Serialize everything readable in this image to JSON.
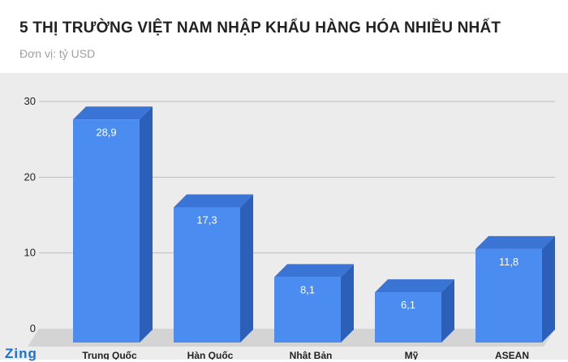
{
  "chart_data": {
    "type": "bar",
    "title": "5 THỊ TRƯỜNG VIỆT NAM NHẬP KHẨU HÀNG HÓA NHIỀU NHẤT",
    "subtitle": "Đơn vị: tỷ USD",
    "categories": [
      "Trung Quốc",
      "Hàn Quốc",
      "Nhật Bản",
      "Mỹ",
      "ASEAN"
    ],
    "values": [
      28.9,
      17.3,
      8.1,
      6.1,
      11.8
    ],
    "value_labels": [
      "28,9",
      "17,3",
      "8,1",
      "6,1",
      "11,8"
    ],
    "ylim": [
      0,
      30
    ],
    "yticks": [
      "0",
      "10",
      "20",
      "30"
    ],
    "grid": true,
    "bar_color": "#4a8cf0",
    "bar_side_color": "#2b5fb8",
    "bar_top_color": "#3a75d6",
    "xlabel": "",
    "ylabel": ""
  },
  "logo": {
    "text": "Zing"
  }
}
